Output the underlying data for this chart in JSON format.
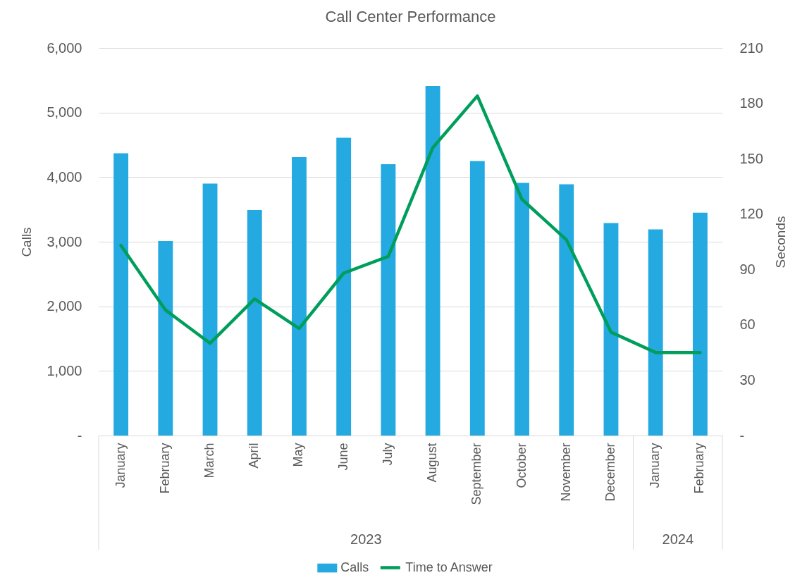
{
  "chart_data": {
    "type": "bar",
    "title": "Call Center Performance",
    "ylabel": "Calls",
    "y2label": "Seconds",
    "categories": [
      "January",
      "February",
      "March",
      "April",
      "May",
      "June",
      "July",
      "August",
      "September",
      "October",
      "November",
      "December",
      "January",
      "February"
    ],
    "series": [
      {
        "name": "Calls",
        "color": "#24a9e1",
        "values": [
          4370,
          3010,
          3900,
          3490,
          4310,
          4610,
          4200,
          5410,
          4250,
          3910,
          3890,
          3290,
          3190,
          3450
        ]
      },
      {
        "name": "Time to Answer",
        "type": "line",
        "axis": "y2",
        "color": "#009e5b",
        "values": [
          103,
          68,
          50,
          74,
          58,
          88,
          97,
          156,
          184,
          128,
          106,
          56,
          45,
          45
        ]
      }
    ],
    "ylim": [
      0,
      6000
    ],
    "yticks": [
      {
        "value": 0,
        "label": "-"
      },
      {
        "value": 1000,
        "label": "1,000"
      },
      {
        "value": 2000,
        "label": "2,000"
      },
      {
        "value": 3000,
        "label": "3,000"
      },
      {
        "value": 4000,
        "label": "4,000"
      },
      {
        "value": 5000,
        "label": "5,000"
      },
      {
        "value": 6000,
        "label": "6,000"
      }
    ],
    "y2lim": [
      0,
      210
    ],
    "y2ticks": [
      {
        "value": 0,
        "label": "-"
      },
      30,
      60,
      90,
      120,
      150,
      180,
      210
    ],
    "grid": "y",
    "legend": "bottom",
    "annotations": [
      "2023",
      "2024"
    ]
  }
}
